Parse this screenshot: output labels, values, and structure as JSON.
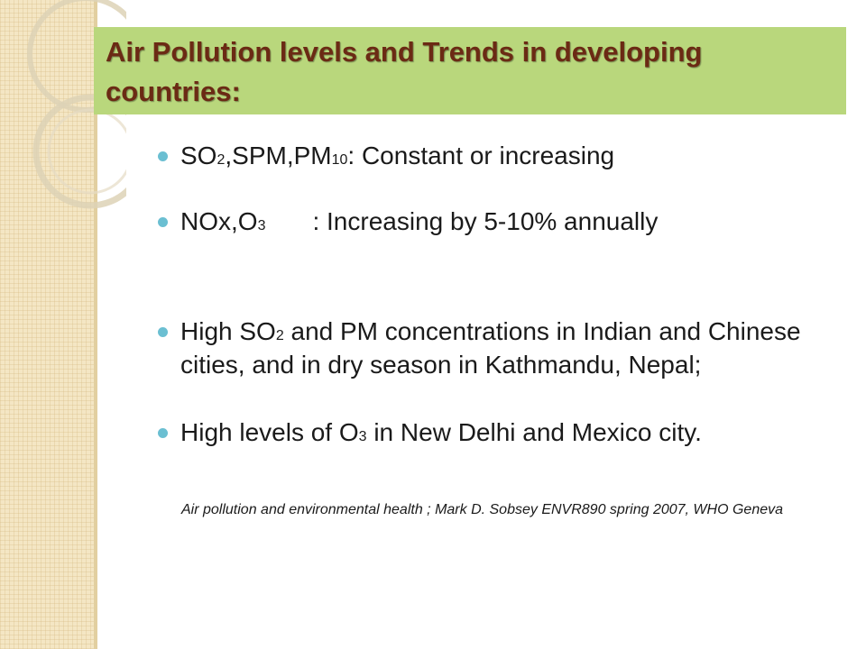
{
  "slide": {
    "title": "Air Pollution levels and Trends in developing countries:",
    "bullets": [
      {
        "p1": "SO",
        "s1": "2",
        "p2": ",SPM,PM",
        "s2": "10",
        "p3": ": Constant or increasing"
      },
      {
        "p1": "NOx,O",
        "s1": "3",
        "p2": ": Increasing by 5-10% annually"
      },
      {
        "p1": "High SO",
        "s1": "2",
        "p2": " and PM concentrations in Indian and Chinese cities, and in dry season in Kathmandu, Nepal;"
      },
      {
        "p1": "High levels of O",
        "s1": "3",
        "p2": " in New Delhi and Mexico city."
      }
    ],
    "citation": "Air pollution and environmental health ; Mark D. Sobsey ENVR890 spring 2007, WHO Geneva"
  },
  "colors": {
    "title_band": "#b9d77c",
    "title_text": "#6b2a14",
    "bullet_dot": "#6bbfd2",
    "side_strip": "#f4e6c4"
  }
}
